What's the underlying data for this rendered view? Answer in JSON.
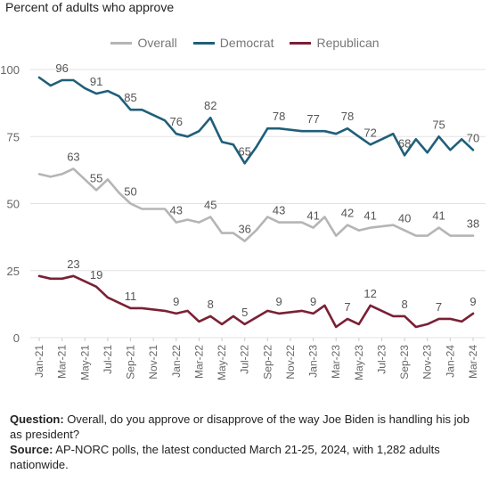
{
  "chart_data": {
    "type": "line",
    "title": "",
    "subtitle": "Percent of adults who approve",
    "xlabel": "",
    "ylabel": "",
    "ylim": [
      0,
      100
    ],
    "yticks": [
      "0",
      "25",
      "50",
      "75",
      "100"
    ],
    "xtick_labels": [
      "Jan-21",
      "Mar-21",
      "May-21",
      "Jul-21",
      "Sep-21",
      "Nov-21",
      "Jan-22",
      "Mar-22",
      "May-22",
      "Jul-22",
      "Sep-22",
      "Nov-22",
      "Jan-23",
      "Mar-23",
      "May-23",
      "Jul-23",
      "Sep-23",
      "Nov-23",
      "Jan-24",
      "Mar-24"
    ],
    "legend_position": "top",
    "grid": "horizontal",
    "series": [
      {
        "name": "Overall",
        "color": "#b5b5b5",
        "points": [
          {
            "x": "Jan-21",
            "y": 61
          },
          {
            "x": "Feb-21",
            "y": 60
          },
          {
            "x": "Mar-21",
            "y": 61
          },
          {
            "x": "Apr-21",
            "y": 63,
            "label": "63"
          },
          {
            "x": "May-21",
            "y": 59
          },
          {
            "x": "Jun-21",
            "y": 55,
            "label": "55"
          },
          {
            "x": "Jul-21",
            "y": 59
          },
          {
            "x": "Aug-21",
            "y": 54
          },
          {
            "x": "Sep-21",
            "y": 50,
            "label": "50"
          },
          {
            "x": "Oct-21",
            "y": 48
          },
          {
            "x": "Nov-21",
            "y": 48
          },
          {
            "x": "Dec-21",
            "y": 48
          },
          {
            "x": "Jan-22",
            "y": 43,
            "label": "43"
          },
          {
            "x": "Feb-22",
            "y": 44
          },
          {
            "x": "Mar-22",
            "y": 43
          },
          {
            "x": "Apr-22",
            "y": 45,
            "label": "45"
          },
          {
            "x": "May-22",
            "y": 39
          },
          {
            "x": "Jun-22",
            "y": 39
          },
          {
            "x": "Jul-22",
            "y": 36,
            "label": "36"
          },
          {
            "x": "Aug-22",
            "y": 40
          },
          {
            "x": "Sep-22",
            "y": 45
          },
          {
            "x": "Oct-22",
            "y": 43,
            "label": "43"
          },
          {
            "x": "Nov-22",
            "y": 43
          },
          {
            "x": "Dec-22",
            "y": 43
          },
          {
            "x": "Jan-23",
            "y": 41,
            "label": "41"
          },
          {
            "x": "Feb-23",
            "y": 45
          },
          {
            "x": "Mar-23",
            "y": 38
          },
          {
            "x": "Apr-23",
            "y": 42,
            "label": "42"
          },
          {
            "x": "May-23",
            "y": 40
          },
          {
            "x": "Jun-23",
            "y": 41,
            "label": "41"
          },
          {
            "x": "Jul-23",
            "y": 41.5
          },
          {
            "x": "Aug-23",
            "y": 42
          },
          {
            "x": "Sep-23",
            "y": 40,
            "label": "40"
          },
          {
            "x": "Oct-23",
            "y": 38
          },
          {
            "x": "Nov-23",
            "y": 38
          },
          {
            "x": "Dec-23",
            "y": 41,
            "label": "41"
          },
          {
            "x": "Jan-24",
            "y": 38
          },
          {
            "x": "Feb-24",
            "y": 38
          },
          {
            "x": "Mar-24",
            "y": 38,
            "label": "38"
          }
        ]
      },
      {
        "name": "Democrat",
        "color": "#1f5f7a",
        "points": [
          {
            "x": "Jan-21",
            "y": 97
          },
          {
            "x": "Feb-21",
            "y": 94
          },
          {
            "x": "Mar-21",
            "y": 96,
            "label": "96"
          },
          {
            "x": "Apr-21",
            "y": 96
          },
          {
            "x": "May-21",
            "y": 93
          },
          {
            "x": "Jun-21",
            "y": 91,
            "label": "91"
          },
          {
            "x": "Jul-21",
            "y": 92
          },
          {
            "x": "Aug-21",
            "y": 90
          },
          {
            "x": "Sep-21",
            "y": 85,
            "label": "85"
          },
          {
            "x": "Oct-21",
            "y": 85
          },
          {
            "x": "Nov-21",
            "y": 83
          },
          {
            "x": "Dec-21",
            "y": 81
          },
          {
            "x": "Jan-22",
            "y": 76,
            "label": "76"
          },
          {
            "x": "Feb-22",
            "y": 75
          },
          {
            "x": "Mar-22",
            "y": 77
          },
          {
            "x": "Apr-22",
            "y": 82,
            "label": "82"
          },
          {
            "x": "May-22",
            "y": 73
          },
          {
            "x": "Jun-22",
            "y": 72
          },
          {
            "x": "Jul-22",
            "y": 65,
            "label": "65"
          },
          {
            "x": "Aug-22",
            "y": 71
          },
          {
            "x": "Sep-22",
            "y": 78
          },
          {
            "x": "Oct-22",
            "y": 78,
            "label": "78"
          },
          {
            "x": "Nov-22",
            "y": 77.5
          },
          {
            "x": "Dec-22",
            "y": 77
          },
          {
            "x": "Jan-23",
            "y": 77,
            "label": "77"
          },
          {
            "x": "Feb-23",
            "y": 77
          },
          {
            "x": "Mar-23",
            "y": 76
          },
          {
            "x": "Apr-23",
            "y": 78,
            "label": "78"
          },
          {
            "x": "May-23",
            "y": 75
          },
          {
            "x": "Jun-23",
            "y": 72,
            "label": "72"
          },
          {
            "x": "Jul-23",
            "y": 74
          },
          {
            "x": "Aug-23",
            "y": 76
          },
          {
            "x": "Sep-23",
            "y": 68,
            "label": "68"
          },
          {
            "x": "Oct-23",
            "y": 74
          },
          {
            "x": "Nov-23",
            "y": 69
          },
          {
            "x": "Dec-23",
            "y": 75,
            "label": "75"
          },
          {
            "x": "Jan-24",
            "y": 70
          },
          {
            "x": "Feb-24",
            "y": 74
          },
          {
            "x": "Mar-24",
            "y": 70,
            "label": "70"
          }
        ]
      },
      {
        "name": "Republican",
        "color": "#7a2035",
        "points": [
          {
            "x": "Jan-21",
            "y": 23
          },
          {
            "x": "Feb-21",
            "y": 22
          },
          {
            "x": "Mar-21",
            "y": 22
          },
          {
            "x": "Apr-21",
            "y": 23,
            "label": "23"
          },
          {
            "x": "May-21",
            "y": 21
          },
          {
            "x": "Jun-21",
            "y": 19,
            "label": "19"
          },
          {
            "x": "Jul-21",
            "y": 15
          },
          {
            "x": "Aug-21",
            "y": 13
          },
          {
            "x": "Sep-21",
            "y": 11,
            "label": "11"
          },
          {
            "x": "Oct-21",
            "y": 11
          },
          {
            "x": "Nov-21",
            "y": 10.5
          },
          {
            "x": "Dec-21",
            "y": 10
          },
          {
            "x": "Jan-22",
            "y": 9,
            "label": "9"
          },
          {
            "x": "Feb-22",
            "y": 10
          },
          {
            "x": "Mar-22",
            "y": 6
          },
          {
            "x": "Apr-22",
            "y": 8,
            "label": "8"
          },
          {
            "x": "May-22",
            "y": 5
          },
          {
            "x": "Jun-22",
            "y": 8
          },
          {
            "x": "Jul-22",
            "y": 5,
            "label": "5"
          },
          {
            "x": "Aug-22",
            "y": 7.5
          },
          {
            "x": "Sep-22",
            "y": 10
          },
          {
            "x": "Oct-22",
            "y": 9,
            "label": "9"
          },
          {
            "x": "Nov-22",
            "y": 9.5
          },
          {
            "x": "Dec-22",
            "y": 10
          },
          {
            "x": "Jan-23",
            "y": 9,
            "label": "9"
          },
          {
            "x": "Feb-23",
            "y": 12
          },
          {
            "x": "Mar-23",
            "y": 4
          },
          {
            "x": "Apr-23",
            "y": 7,
            "label": "7"
          },
          {
            "x": "May-23",
            "y": 5
          },
          {
            "x": "Jun-23",
            "y": 12,
            "label": "12"
          },
          {
            "x": "Jul-23",
            "y": 10
          },
          {
            "x": "Aug-23",
            "y": 8
          },
          {
            "x": "Sep-23",
            "y": 8,
            "label": "8"
          },
          {
            "x": "Oct-23",
            "y": 4
          },
          {
            "x": "Nov-23",
            "y": 5
          },
          {
            "x": "Dec-23",
            "y": 7,
            "label": "7"
          },
          {
            "x": "Jan-24",
            "y": 7
          },
          {
            "x": "Feb-24",
            "y": 6
          },
          {
            "x": "Mar-24",
            "y": 9,
            "label": "9"
          }
        ]
      }
    ]
  },
  "footer": {
    "question_label": "Question:",
    "question_text": " Overall, do you approve or disapprove of the way Joe Biden is handling his job as president?",
    "source_label": "Source:",
    "source_text": " AP-NORC polls, the latest conducted March 21-25, 2024, with 1,282 adults nationwide."
  }
}
